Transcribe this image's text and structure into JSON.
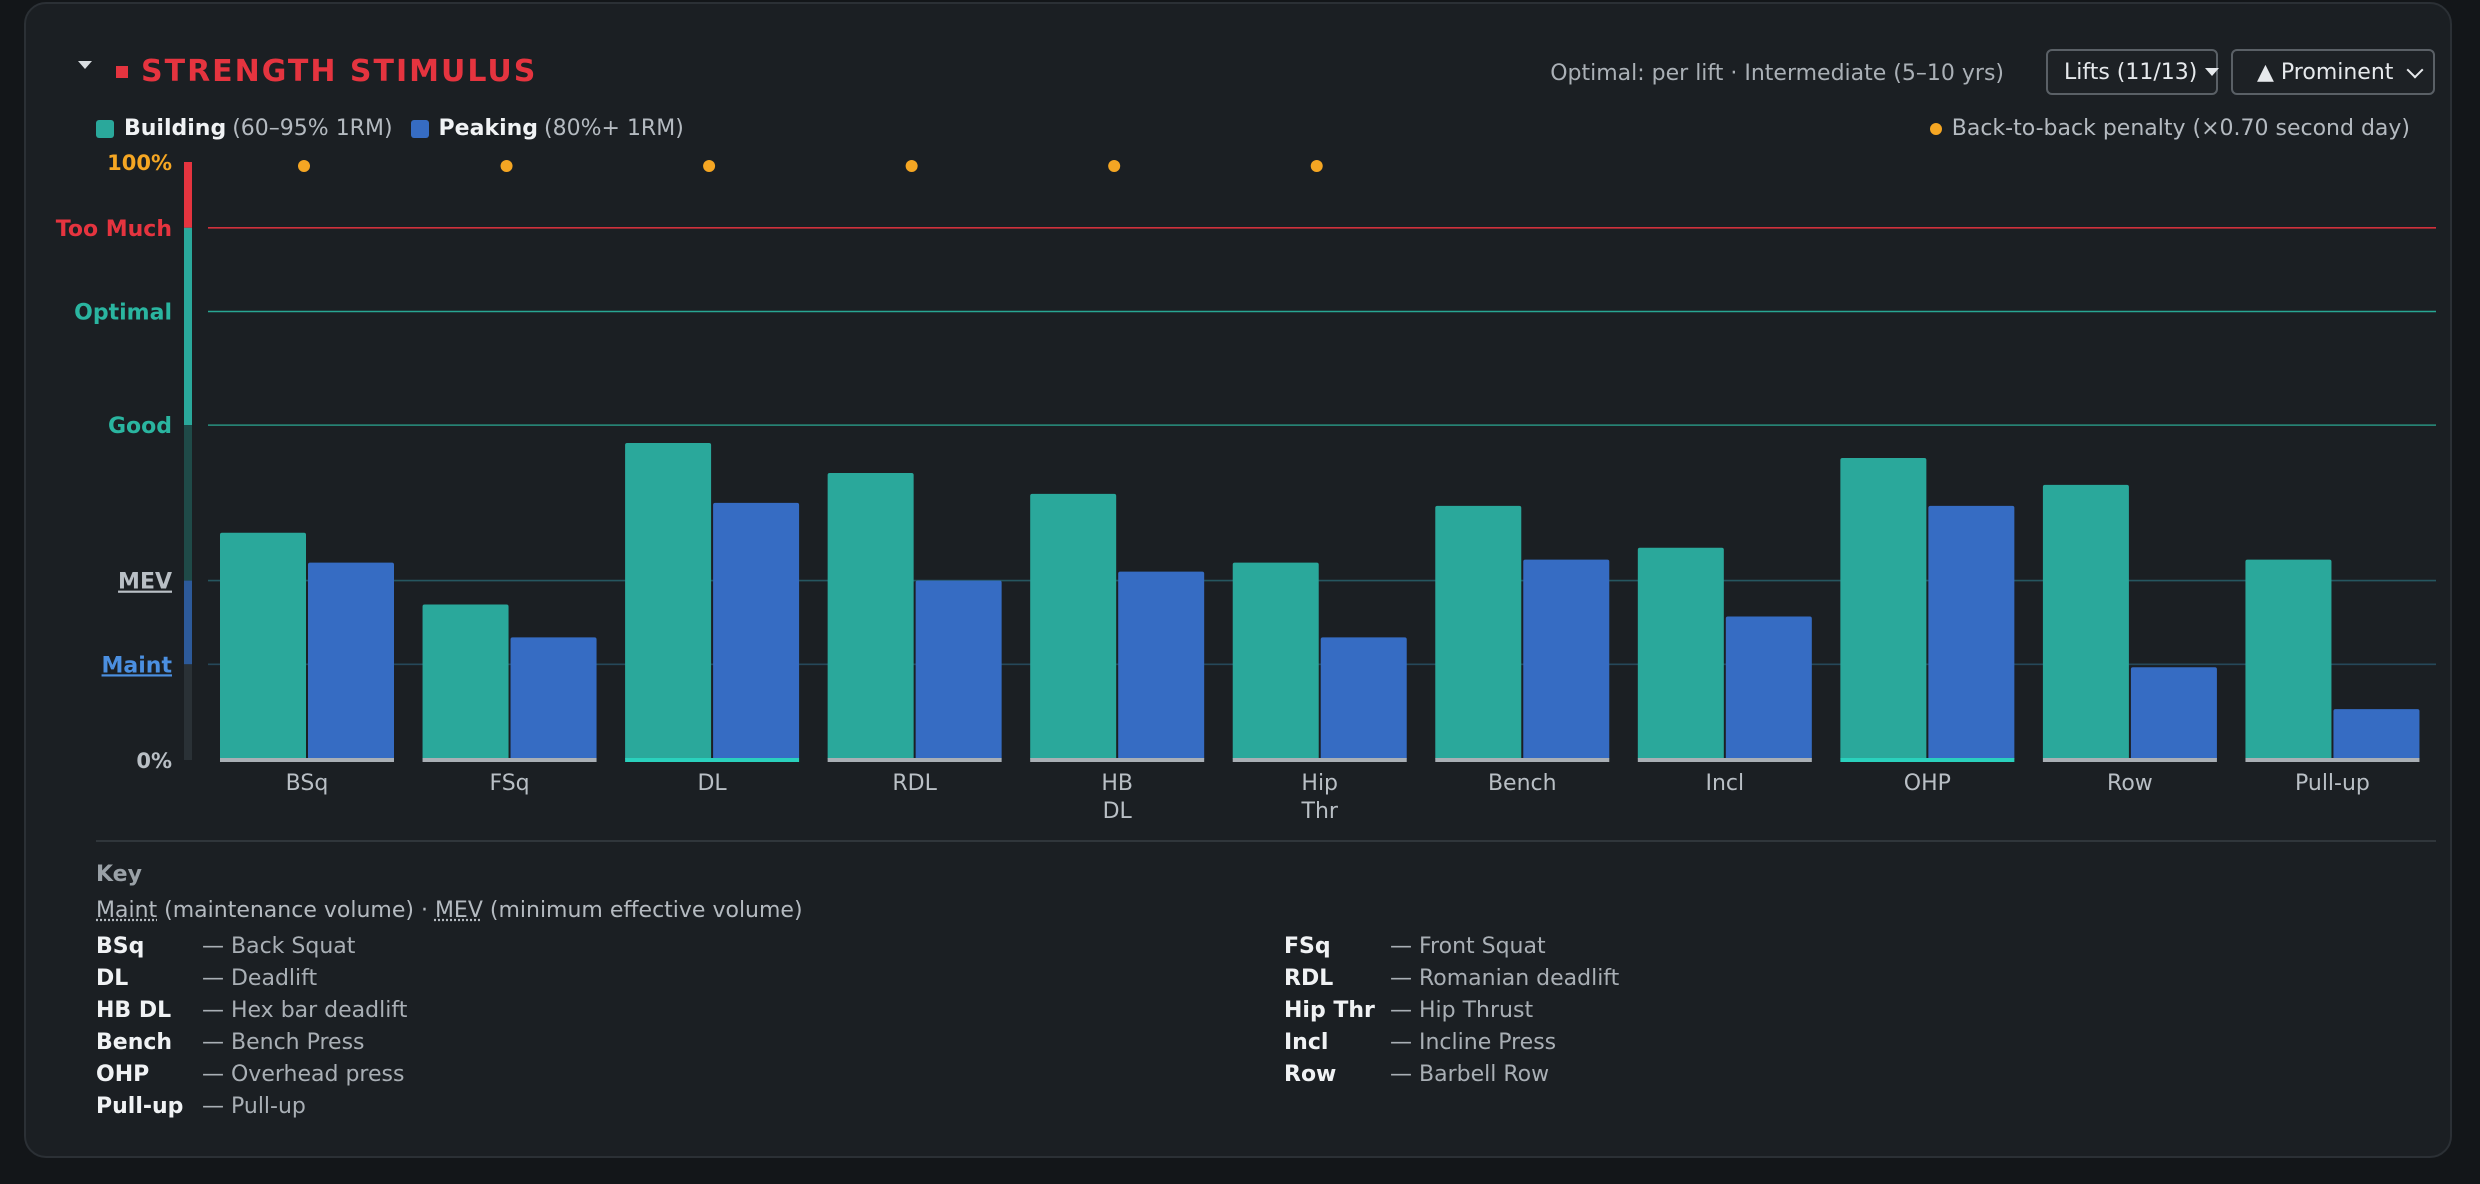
{
  "header": {
    "title": "STRENGTH STIMULUS",
    "optimal_note": "Optimal: per lift · Intermediate (5–10 yrs)",
    "lifts_button": "Lifts (11/13)",
    "prominent_button": "▲ Prominent"
  },
  "legend": {
    "building_name": "Building",
    "building_range": "(60–95% 1RM)",
    "peaking_name": "Peaking",
    "peaking_range": "(80%+ 1RM)",
    "penalty_note": "Back-to-back penalty (×0.70 second day)"
  },
  "colors": {
    "building": "#2aa89b",
    "peaking": "#366cc3",
    "too_much": "#e5343f",
    "optimal": "#2ab5a0",
    "penalty_dot": "#f5a623"
  },
  "chart_data": {
    "type": "bar",
    "categories": [
      "BSq",
      "FSq",
      "DL",
      "RDL",
      "HB DL",
      "Hip Thr",
      "Bench",
      "Incl",
      "OHP",
      "Row",
      "Pull-up"
    ],
    "category_labels": [
      [
        "BSq"
      ],
      [
        "FSq"
      ],
      [
        "DL"
      ],
      [
        "RDL"
      ],
      [
        "HB",
        "DL"
      ],
      [
        "Hip",
        "Thr"
      ],
      [
        "Bench"
      ],
      [
        "Incl"
      ],
      [
        "OHP"
      ],
      [
        "Row"
      ],
      [
        "Pull-up"
      ]
    ],
    "series": [
      {
        "name": "Building",
        "values": [
          38,
          26,
          53,
          48,
          44.5,
          33,
          42.5,
          35.5,
          50.5,
          46,
          33.5
        ]
      },
      {
        "name": "Peaking",
        "values": [
          33,
          20.5,
          43,
          30,
          31.5,
          20.5,
          33.5,
          24,
          42.5,
          15.5,
          8.5
        ]
      }
    ],
    "penalty_flags": [
      true,
      true,
      true,
      true,
      true,
      true,
      false,
      false,
      false,
      false,
      false
    ],
    "highlighted": [
      false,
      false,
      true,
      false,
      false,
      false,
      false,
      false,
      true,
      false,
      false
    ],
    "ylim": [
      0,
      100
    ],
    "y_tick_labels": {
      "top": "100%",
      "bottom": "0%"
    },
    "zones": [
      {
        "label": "Too Much",
        "value": 89
      },
      {
        "label": "Optimal",
        "value": 75
      },
      {
        "label": "Good",
        "value": 56
      },
      {
        "label": "MEV",
        "value": 30
      },
      {
        "label": "Maint",
        "value": 16
      }
    ]
  },
  "key": {
    "title": "Key",
    "defs": {
      "maint": "Maint",
      "maint_desc": "(maintenance volume) ·",
      "mev": "MEV",
      "mev_desc": "(minimum effective volume)"
    },
    "left": [
      {
        "abbr": "BSq",
        "full": "— Back Squat"
      },
      {
        "abbr": "DL",
        "full": "— Deadlift"
      },
      {
        "abbr": "HB DL",
        "full": "— Hex bar deadlift"
      },
      {
        "abbr": "Bench",
        "full": "— Bench Press"
      },
      {
        "abbr": "OHP",
        "full": "— Overhead press"
      },
      {
        "abbr": "Pull-up",
        "full": "— Pull-up"
      }
    ],
    "right": [
      {
        "abbr": "FSq",
        "full": "— Front Squat"
      },
      {
        "abbr": "RDL",
        "full": "— Romanian deadlift"
      },
      {
        "abbr": "Hip Thr",
        "full": "— Hip Thrust"
      },
      {
        "abbr": "Incl",
        "full": "— Incline Press"
      },
      {
        "abbr": "Row",
        "full": "— Barbell Row"
      }
    ]
  }
}
